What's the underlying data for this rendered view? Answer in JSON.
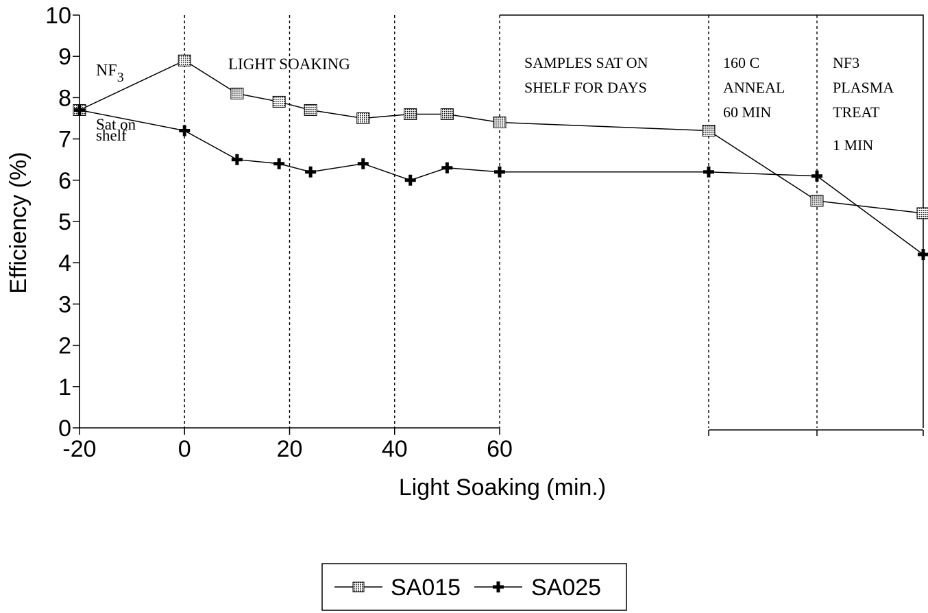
{
  "chart_data": {
    "type": "line",
    "title": "",
    "xlabel": "Light Soaking (min.)",
    "ylabel": "Efficiency (%)",
    "ylim": [
      0,
      10
    ],
    "xlim": [
      -20,
      60
    ],
    "x_tick_labels": [
      "-20",
      "0",
      "20",
      "40",
      "60"
    ],
    "y_tick_labels": [
      "0",
      "1",
      "2",
      "3",
      "4",
      "5",
      "6",
      "7",
      "8",
      "9",
      "10"
    ],
    "x_ticks": [
      -20,
      0,
      20,
      40,
      60
    ],
    "y_ticks": [
      0,
      1,
      2,
      3,
      4,
      5,
      6,
      7,
      8,
      9,
      10
    ],
    "grid": false,
    "legend_position": "bottom-center",
    "stages": [
      "initial",
      "light-soaking",
      "shelf",
      "anneal",
      "nf3-plasma"
    ],
    "series": [
      {
        "name": "SA015",
        "marker": "hatched-square",
        "points": [
          {
            "x": -20,
            "y": 7.7
          },
          {
            "x": 0,
            "y": 8.9
          },
          {
            "x": 10,
            "y": 8.1
          },
          {
            "x": 18,
            "y": 7.9
          },
          {
            "x": 24,
            "y": 7.7
          },
          {
            "x": 34,
            "y": 7.5
          },
          {
            "x": 43,
            "y": 7.6
          },
          {
            "x": 50,
            "y": 7.6
          },
          {
            "x": 60,
            "y": 7.4
          },
          {
            "x": "after shelf",
            "y": 7.2
          },
          {
            "x": "after anneal",
            "y": 5.5
          },
          {
            "x": "after NF3 plasma",
            "y": 5.2
          }
        ]
      },
      {
        "name": "SA025",
        "marker": "plus",
        "points": [
          {
            "x": -20,
            "y": 7.7
          },
          {
            "x": 0,
            "y": 7.2
          },
          {
            "x": 10,
            "y": 6.5
          },
          {
            "x": 18,
            "y": 6.4
          },
          {
            "x": 24,
            "y": 6.2
          },
          {
            "x": 34,
            "y": 6.4
          },
          {
            "x": 43,
            "y": 6.0
          },
          {
            "x": 50,
            "y": 6.3
          },
          {
            "x": 60,
            "y": 6.2
          },
          {
            "x": "after shelf",
            "y": 6.2
          },
          {
            "x": "after anneal",
            "y": 6.1
          },
          {
            "x": "after NF3 plasma",
            "y": 4.2
          }
        ]
      }
    ],
    "annotations": {
      "nf3_main": "NF",
      "nf3_sub": "3",
      "sat_on": "Sat on",
      "shelf": "shelf",
      "light_soaking": "LIGHT SOAKING",
      "samples_line1": "SAMPLES SAT ON",
      "samples_line2": "SHELF FOR DAYS",
      "anneal_line1": "160 C",
      "anneal_line2": "ANNEAL",
      "anneal_line3": "60 MIN",
      "plasma_line1": "NF3",
      "plasma_line2": "PLASMA",
      "plasma_line3": "TREAT",
      "plasma_line4": "1 MIN"
    }
  }
}
